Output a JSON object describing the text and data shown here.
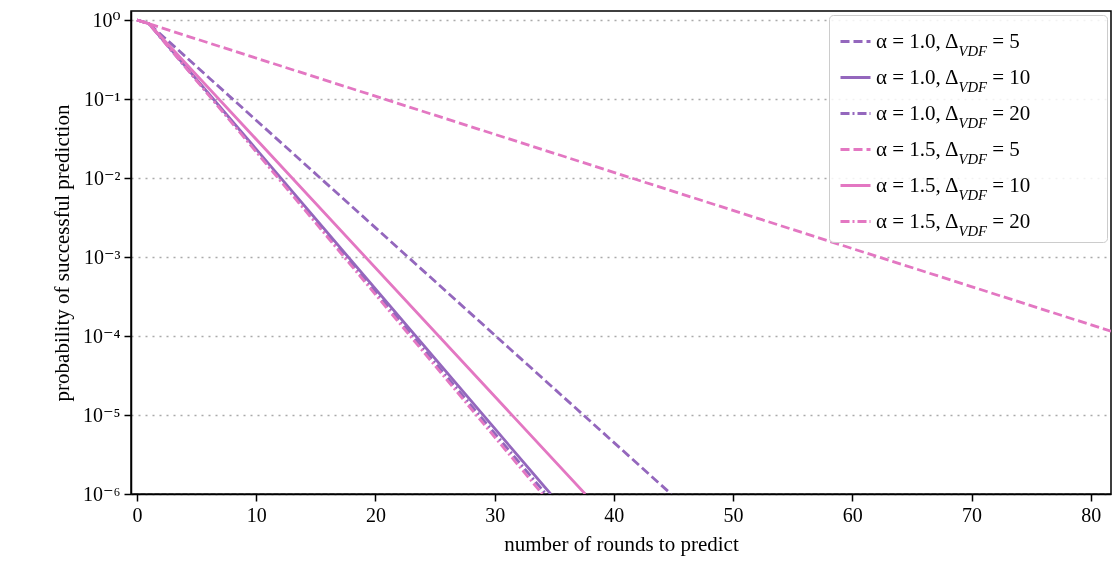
{
  "chart_data": {
    "type": "line",
    "xlabel": "number of rounds to predict",
    "ylabel": "probability of successful prediction",
    "log": "y",
    "grid": "y",
    "legend": "top right",
    "xlim": [
      -0.5,
      81.7
    ],
    "xticks": [
      0,
      10,
      20,
      30,
      40,
      50,
      60,
      70,
      80
    ],
    "ylim": [
      1e-06,
      1.3
    ],
    "yticks": [
      {
        "value": 1e-06,
        "label": "10⁻⁶"
      },
      {
        "value": 1e-05,
        "label": "10⁻⁵"
      },
      {
        "value": 0.0001,
        "label": "10⁻⁴"
      },
      {
        "value": 0.001,
        "label": "10⁻³"
      },
      {
        "value": 0.01,
        "label": "10⁻²"
      },
      {
        "value": 0.1,
        "label": "10⁻¹"
      },
      {
        "value": 1,
        "label": "10⁰"
      }
    ],
    "series": [
      {
        "name": "α = 1.0, Δ$_{VDF}$ = 5",
        "color": "#9467bd",
        "line_style": "dashed",
        "x": [
          0,
          1,
          44.8
        ],
        "values": [
          1,
          0.9,
          1e-06
        ]
      },
      {
        "name": "α = 1.0, Δ$_{VDF}$ = 10",
        "color": "#9467bd",
        "line_style": "solid",
        "x": [
          0,
          1,
          34.7
        ],
        "values": [
          1,
          0.9,
          1e-06
        ]
      },
      {
        "name": "α = 1.0, Δ$_{VDF}$ = 20",
        "color": "#9467bd",
        "line_style": "dashdot",
        "x": [
          0,
          1,
          34.3
        ],
        "values": [
          1,
          0.9,
          1e-06
        ]
      },
      {
        "name": "α = 1.5, Δ$_{VDF}$ = 5",
        "color": "#e377c2",
        "line_style": "dashed",
        "x": [
          0,
          81.7
        ],
        "values": [
          1,
          0.000115
        ]
      },
      {
        "name": "α = 1.5, Δ$_{VDF}$ = 10",
        "color": "#e377c2",
        "line_style": "solid",
        "x": [
          0,
          1,
          37.6
        ],
        "values": [
          1,
          0.9,
          1e-06
        ]
      },
      {
        "name": "α = 1.5, Δ$_{VDF}$ = 20",
        "color": "#e377c2",
        "line_style": "dashdot",
        "x": [
          0,
          1,
          34.0
        ],
        "values": [
          1,
          0.9,
          1e-06
        ]
      }
    ]
  }
}
